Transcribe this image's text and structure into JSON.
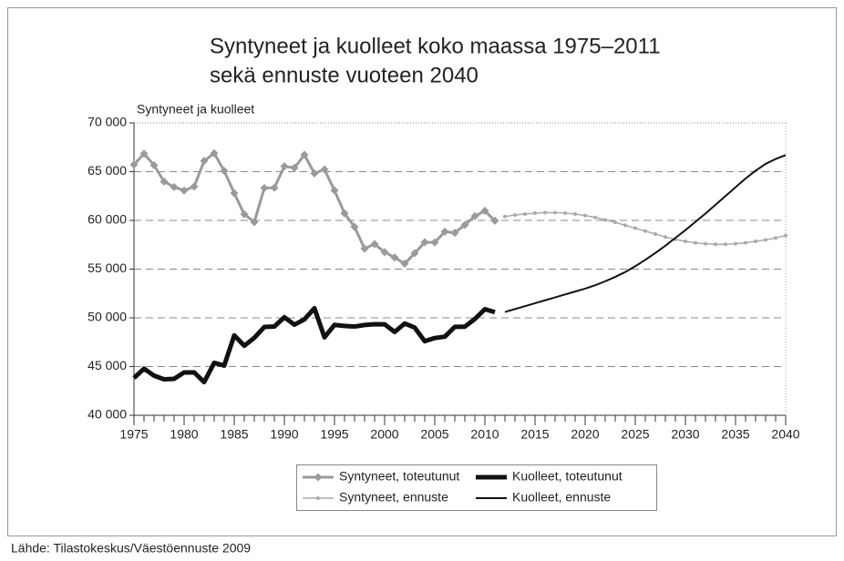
{
  "chart_data": {
    "type": "line",
    "title": "Syntyneet ja kuolleet koko maassa 1975–2011",
    "subtitle": "sekä ennuste vuoteen 2040",
    "y_axis_label": "Syntyneet ja kuolleet",
    "source": "Lähde: Tilastokeskus/Väestöennuste 2009",
    "xlim": [
      1975,
      2040
    ],
    "xticks": [
      1975,
      1980,
      1985,
      1990,
      1995,
      2000,
      2005,
      2010,
      2015,
      2020,
      2025,
      2030,
      2035,
      2040
    ],
    "ylim": [
      40000,
      70000
    ],
    "yticks": [
      {
        "value": 40000,
        "label": "40 000"
      },
      {
        "value": 45000,
        "label": "45 000"
      },
      {
        "value": 50000,
        "label": "50 000"
      },
      {
        "value": 55000,
        "label": "55 000"
      },
      {
        "value": 60000,
        "label": "60 000"
      },
      {
        "value": 65000,
        "label": "65 000"
      },
      {
        "value": 70000,
        "label": "70 000"
      }
    ],
    "grid": true,
    "legend": "bottom",
    "series": [
      {
        "name": "Syntyneet, toteutunut",
        "color": "#9a9a9a",
        "line_width": 3,
        "marker": "diamond",
        "x": [
          1975,
          1976,
          1977,
          1978,
          1979,
          1980,
          1981,
          1982,
          1983,
          1984,
          1985,
          1986,
          1987,
          1988,
          1989,
          1990,
          1991,
          1992,
          1993,
          1994,
          1995,
          1996,
          1997,
          1998,
          1999,
          2000,
          2001,
          2002,
          2003,
          2004,
          2005,
          2006,
          2007,
          2008,
          2009,
          2010,
          2011
        ],
        "values": [
          65719,
          66846,
          65659,
          63983,
          63428,
          63064,
          63469,
          66106,
          66892,
          65076,
          62796,
          60632,
          59827,
          63316,
          63348,
          65549,
          65395,
          66731,
          64826,
          65231,
          63067,
          60723,
          59329,
          57108,
          57574,
          56742,
          56189,
          55555,
          56630,
          57758,
          57745,
          58840,
          58729,
          59530,
          60430,
          60980,
          59961
        ]
      },
      {
        "name": "Kuolleet, toteutunut",
        "color": "#111111",
        "line_width": 5,
        "marker": "none",
        "x": [
          1975,
          1976,
          1977,
          1978,
          1979,
          1980,
          1981,
          1982,
          1983,
          1984,
          1985,
          1986,
          1987,
          1988,
          1989,
          1990,
          1991,
          1992,
          1993,
          1994,
          1995,
          1996,
          1997,
          1998,
          1999,
          2000,
          2001,
          2002,
          2003,
          2004,
          2005,
          2006,
          2007,
          2008,
          2009,
          2010,
          2011
        ],
        "values": [
          43828,
          44786,
          44065,
          43692,
          43738,
          44398,
          44404,
          43408,
          45388,
          45098,
          48198,
          47135,
          47949,
          49063,
          49110,
          50058,
          49294,
          49844,
          50988,
          48000,
          49280,
          49167,
          49108,
          49262,
          49345,
          49339,
          48550,
          49418,
          48996,
          47600,
          47928,
          48065,
          49077,
          49094,
          49883,
          50887,
          50585
        ]
      },
      {
        "name": "Syntyneet, ennuste",
        "color": "#aaaaaa",
        "line_width": 1.5,
        "marker": "dot",
        "x": [
          2012,
          2013,
          2014,
          2015,
          2016,
          2017,
          2018,
          2019,
          2020,
          2021,
          2022,
          2023,
          2024,
          2025,
          2026,
          2027,
          2028,
          2029,
          2030,
          2031,
          2032,
          2033,
          2034,
          2035,
          2036,
          2037,
          2038,
          2039,
          2040
        ],
        "values": [
          60400,
          60550,
          60650,
          60750,
          60800,
          60800,
          60750,
          60650,
          60500,
          60300,
          60050,
          59800,
          59500,
          59200,
          58900,
          58600,
          58300,
          58050,
          57850,
          57700,
          57600,
          57550,
          57550,
          57600,
          57700,
          57850,
          58000,
          58200,
          58450
        ]
      },
      {
        "name": "Kuolleet, ennuste",
        "color": "#111111",
        "line_width": 2,
        "marker": "none",
        "x": [
          2012,
          2013,
          2014,
          2015,
          2016,
          2017,
          2018,
          2019,
          2020,
          2021,
          2022,
          2023,
          2024,
          2025,
          2026,
          2027,
          2028,
          2029,
          2030,
          2031,
          2032,
          2033,
          2034,
          2035,
          2036,
          2037,
          2038,
          2039,
          2040
        ],
        "values": [
          50600,
          50900,
          51200,
          51500,
          51800,
          52100,
          52400,
          52700,
          53000,
          53350,
          53750,
          54200,
          54700,
          55300,
          55950,
          56650,
          57400,
          58200,
          59000,
          59850,
          60700,
          61600,
          62500,
          63400,
          64300,
          65100,
          65800,
          66300,
          66700
        ]
      }
    ]
  }
}
